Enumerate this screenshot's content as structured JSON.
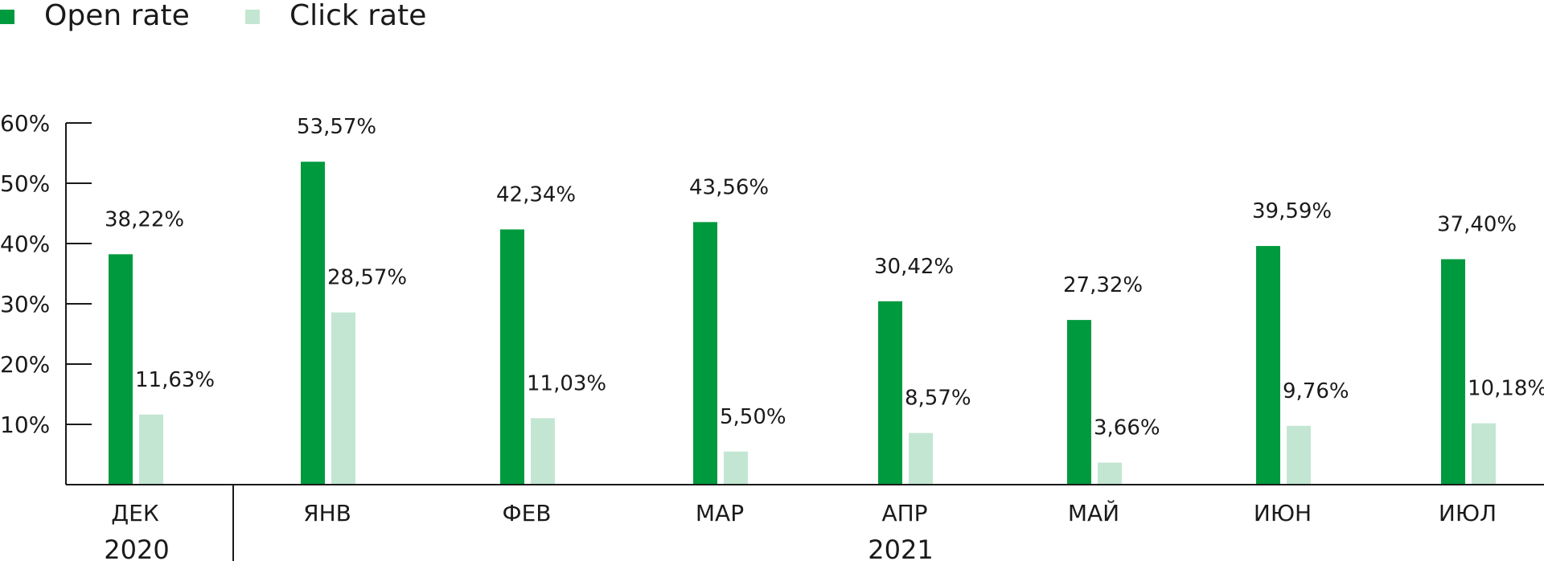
{
  "chart_data": {
    "type": "bar",
    "categories": [
      "ДЕК",
      "ЯНВ",
      "ФЕВ",
      "МАР",
      "АПР",
      "МАЙ",
      "ИЮН",
      "ИЮЛ"
    ],
    "years": [
      {
        "label": "2020",
        "categories": [
          "ДЕК"
        ]
      },
      {
        "label": "2021",
        "categories": [
          "ЯНВ",
          "ФЕВ",
          "МАР",
          "АПР",
          "МАЙ",
          "ИЮН",
          "ИЮЛ"
        ]
      }
    ],
    "series": [
      {
        "name": "Open rate",
        "color": "#009a3e",
        "values": [
          38.22,
          53.57,
          42.34,
          43.56,
          30.42,
          27.32,
          39.59,
          37.4
        ],
        "labels": [
          "38,22%",
          "53,57%",
          "42,34%",
          "43,56%",
          "30,42%",
          "27,32%",
          "39,59%",
          "37,40%"
        ]
      },
      {
        "name": "Click rate",
        "color": "#c3e6d2",
        "values": [
          11.63,
          28.57,
          11.03,
          5.5,
          8.57,
          3.66,
          9.76,
          10.18
        ],
        "labels": [
          "11,63%",
          "28,57%",
          "11,03%",
          "5,50%",
          "8,57%",
          "3,66%",
          "9,76%",
          "10,18%"
        ]
      }
    ],
    "ylim": [
      0,
      60
    ],
    "yticks": [
      10,
      20,
      30,
      40,
      50,
      60
    ],
    "ytick_labels": [
      "10%",
      "20%",
      "30%",
      "40%",
      "50%",
      "60%"
    ],
    "legend_position": "top-left",
    "grid": false
  }
}
